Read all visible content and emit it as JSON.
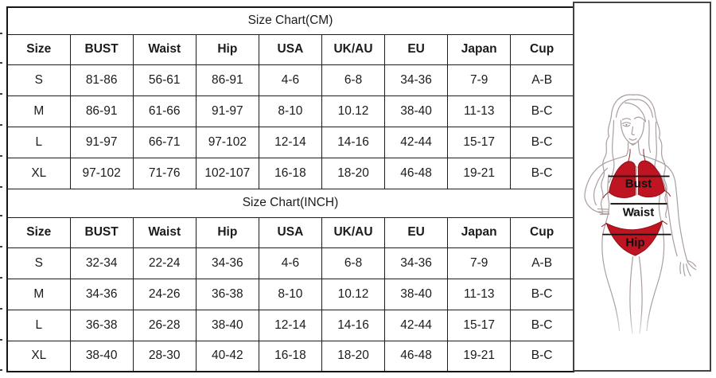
{
  "chart_data": [
    {
      "type": "table",
      "title": "Size Chart(CM)",
      "columns": [
        "Size",
        "BUST",
        "Waist",
        "Hip",
        "USA",
        "UK/AU",
        "EU",
        "Japan",
        "Cup"
      ],
      "rows": [
        [
          "S",
          "81-86",
          "56-61",
          "86-91",
          "4-6",
          "6-8",
          "34-36",
          "7-9",
          "A-B"
        ],
        [
          "M",
          "86-91",
          "61-66",
          "91-97",
          "8-10",
          "10.12",
          "38-40",
          "11-13",
          "B-C"
        ],
        [
          "L",
          "91-97",
          "66-71",
          "97-102",
          "12-14",
          "14-16",
          "42-44",
          "15-17",
          "B-C"
        ],
        [
          "XL",
          "97-102",
          "71-76",
          "102-107",
          "16-18",
          "18-20",
          "46-48",
          "19-21",
          "B-C"
        ]
      ]
    },
    {
      "type": "table",
      "title": "Size Chart(INCH)",
      "columns": [
        "Size",
        "BUST",
        "Waist",
        "Hip",
        "USA",
        "UK/AU",
        "EU",
        "Japan",
        "Cup"
      ],
      "rows": [
        [
          "S",
          "32-34",
          "22-24",
          "34-36",
          "4-6",
          "6-8",
          "34-36",
          "7-9",
          "A-B"
        ],
        [
          "M",
          "34-36",
          "24-26",
          "36-38",
          "8-10",
          "10.12",
          "38-40",
          "11-13",
          "B-C"
        ],
        [
          "L",
          "36-38",
          "26-28",
          "38-40",
          "12-14",
          "14-16",
          "42-44",
          "15-17",
          "B-C"
        ],
        [
          "XL",
          "38-40",
          "28-30",
          "40-42",
          "16-18",
          "18-20",
          "46-48",
          "19-21",
          "B-C"
        ]
      ]
    }
  ],
  "figure": {
    "labels": {
      "bust": "Bust",
      "waist": "Waist",
      "hip": "Hip"
    },
    "bikini_color": "#bf1422",
    "line_color": "#111111",
    "sketch_color": "#ab9f9f"
  }
}
